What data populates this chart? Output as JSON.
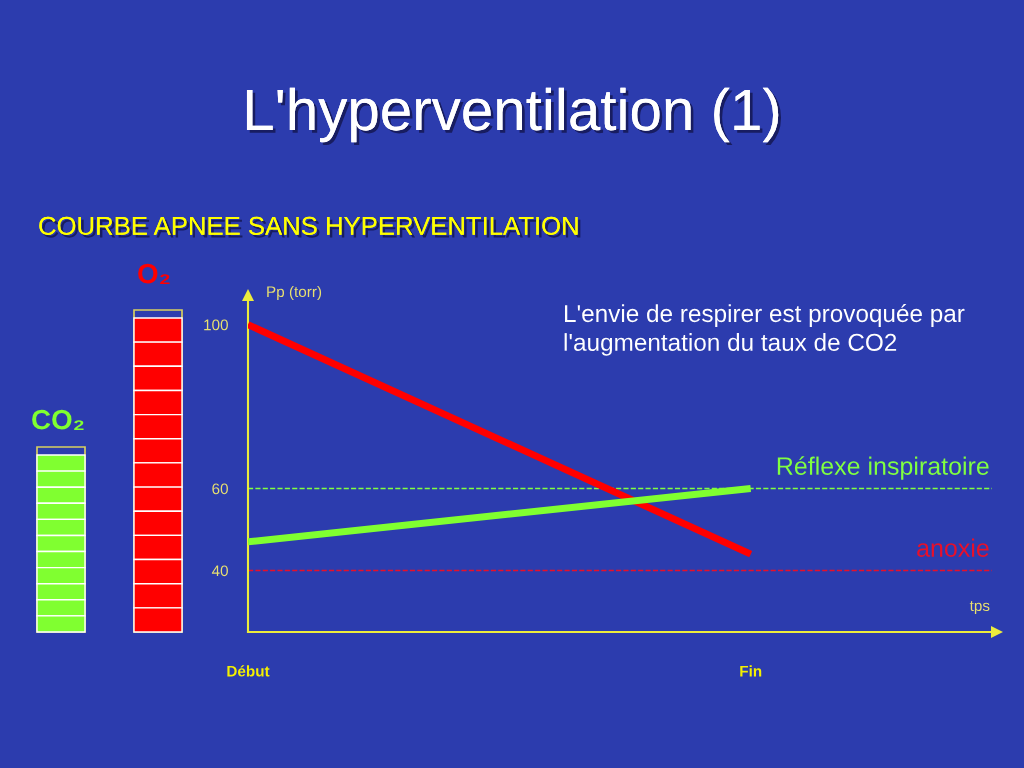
{
  "chart_data": {
    "type": "line",
    "title": "L'hyperventilation (1)",
    "subtitle": "COURBE APNEE SANS HYPERVENTILATION",
    "xlabel": "tps",
    "ylabel": "Pp (torr)",
    "annotations": [
      "O₂",
      "CO₂",
      "L'envie de respirer est provoquée par\nl'augmentation du taux de CO2"
    ],
    "categories": [
      "Début",
      "Fin"
    ],
    "ylim": [
      25,
      106
    ],
    "yticks": [
      40,
      60,
      100
    ],
    "series": [
      {
        "color": "#ff0000",
        "values": [
          100,
          44
        ]
      },
      {
        "color": "#80ff30",
        "values": [
          47,
          60
        ]
      }
    ],
    "ref_lines": [
      {
        "axis": "y",
        "value": 60,
        "label": "Réflexe inspiratoire",
        "color": "#80ff40",
        "line_style": "dashed"
      },
      {
        "axis": "y",
        "value": 40,
        "label": "anoxie",
        "color": "#e8102a",
        "line_style": "dashed"
      }
    ],
    "marker": "none",
    "line_style": "solid"
  }
}
